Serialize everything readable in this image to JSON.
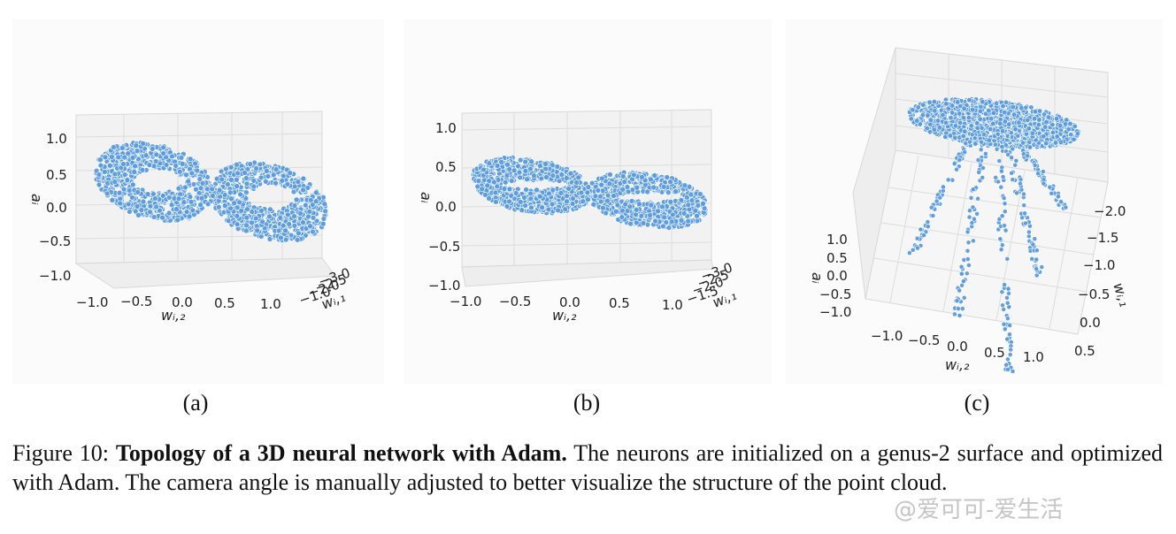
{
  "panels": [
    {
      "id": "a",
      "label": "(a)",
      "z_label": "aᵢ",
      "x_label": "wᵢ,₂",
      "y_label": "wᵢ,₁",
      "z_ticks": [
        "1.0",
        "0.5",
        "0.0",
        "−0.5",
        "−1.0"
      ],
      "x_ticks": [
        "−1.0",
        "−0.5",
        "0.0",
        "0.5",
        "1.0"
      ],
      "y_ticks": [
        "−3.0",
        "−2.5",
        "−2.0",
        "−1.0"
      ]
    },
    {
      "id": "b",
      "label": "(b)",
      "z_label": "aᵢ",
      "x_label": "wᵢ,₂",
      "y_label": "wᵢ,₁",
      "z_ticks": [
        "1.0",
        "0.5",
        "0.0",
        "−0.5",
        "−1.0"
      ],
      "x_ticks": [
        "−1.0",
        "−0.5",
        "0.0",
        "0.5",
        "1.0"
      ],
      "y_ticks": [
        "−3.0",
        "−2.5",
        "−2.0",
        "−1.5"
      ]
    },
    {
      "id": "c",
      "label": "(c)",
      "z_label": "aᵢ",
      "x_label": "wᵢ,₂",
      "y_label": "wᵢ,₁",
      "z_ticks": [
        "1.0",
        "0.5",
        "0.0",
        "−0.5",
        "−1.0"
      ],
      "x_ticks": [
        "−1.0",
        "−0.5",
        "0.0",
        "0.5",
        "1.0"
      ],
      "y_ticks": [
        "−2.0",
        "−1.5",
        "−1.0",
        "−0.5",
        "0.0",
        "0.5"
      ]
    }
  ],
  "caption": {
    "prefix": "Figure 10: ",
    "bold": "Topology of a 3D neural network with Adam.",
    "rest": " The neurons are initialized on a genus-2 surface and optimized with Adam. The camera angle is manually adjusted to better visualize the structure of the point cloud."
  },
  "watermark": "@爱可可-爱生活",
  "colors": {
    "point": "#5b9be0",
    "pane": "#f2f2f2",
    "grid": "#dcdcdc"
  }
}
